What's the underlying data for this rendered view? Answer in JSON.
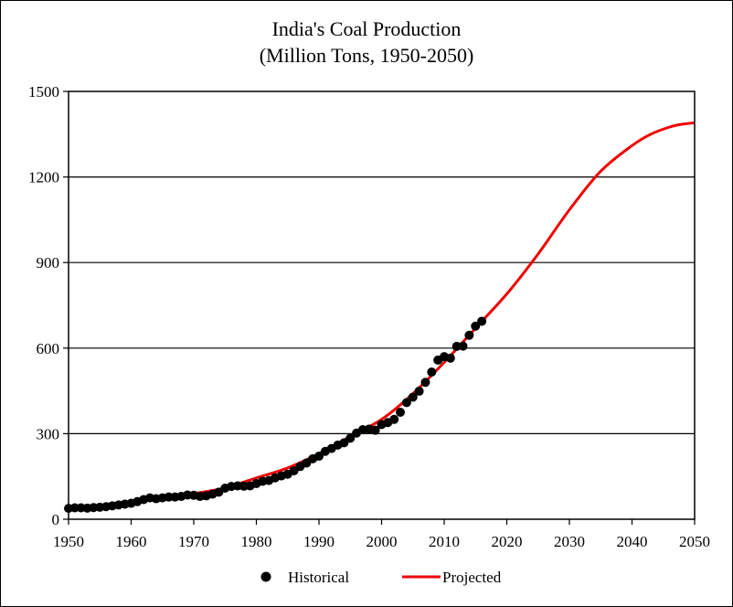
{
  "chart_data": {
    "type": "line",
    "title": "India's Coal Production",
    "subtitle": "(Million Tons, 1950-2050)",
    "xlabel": "",
    "ylabel": "",
    "xlim": [
      1950,
      2050
    ],
    "ylim": [
      0,
      1500
    ],
    "x_ticks": [
      1950,
      1960,
      1970,
      1980,
      1990,
      2000,
      2010,
      2020,
      2030,
      2040,
      2050
    ],
    "y_ticks": [
      0,
      300,
      600,
      900,
      1200,
      1500
    ],
    "x_tick_labels": [
      "1950",
      "1960",
      "1970",
      "1980",
      "1990",
      "2000",
      "2010",
      "2020",
      "2030",
      "2040",
      "2050"
    ],
    "y_tick_labels": [
      "0",
      "300",
      "600",
      "900",
      "1200",
      "1500"
    ],
    "grid": "horizontal",
    "legend_position": "bottom",
    "series": [
      {
        "name": "Historical",
        "kind": "scatter",
        "color": "#000000",
        "x": [
          1950,
          1951,
          1952,
          1953,
          1954,
          1955,
          1956,
          1957,
          1958,
          1959,
          1960,
          1961,
          1962,
          1963,
          1964,
          1965,
          1966,
          1967,
          1968,
          1969,
          1970,
          1971,
          1972,
          1973,
          1974,
          1975,
          1976,
          1977,
          1978,
          1979,
          1980,
          1981,
          1982,
          1983,
          1984,
          1985,
          1986,
          1987,
          1988,
          1989,
          1990,
          1991,
          1992,
          1993,
          1994,
          1995,
          1996,
          1997,
          1998,
          1999,
          2000,
          2001,
          2002,
          2003,
          2004,
          2005,
          2006,
          2007,
          2008,
          2009,
          2010,
          2011,
          2012,
          2013,
          2014,
          2015,
          2016
        ],
        "y": [
          38,
          40,
          40,
          39,
          41,
          42,
          44,
          47,
          50,
          53,
          56,
          62,
          69,
          75,
          72,
          75,
          78,
          78,
          80,
          85,
          84,
          80,
          82,
          88,
          95,
          109,
          115,
          117,
          116,
          117,
          125,
          133,
          136,
          145,
          152,
          158,
          170,
          185,
          197,
          212,
          221,
          238,
          248,
          260,
          268,
          284,
          302,
          314,
          316,
          312,
          332,
          339,
          350,
          375,
          409,
          428,
          449,
          480,
          516,
          558,
          570,
          565,
          606,
          607,
          645,
          677,
          694
        ]
      },
      {
        "name": "Projected",
        "kind": "line",
        "color": "#ee0000",
        "x": [
          1950,
          1955,
          1960,
          1965,
          1970,
          1975,
          1980,
          1985,
          1990,
          1995,
          2000,
          2005,
          2010,
          2015,
          2020,
          2025,
          2030,
          2035,
          2040,
          2043,
          2046,
          2048,
          2050
        ],
        "y": [
          40,
          46,
          56,
          75,
          90,
          110,
          145,
          180,
          230,
          290,
          350,
          440,
          550,
          670,
          790,
          930,
          1085,
          1220,
          1310,
          1350,
          1375,
          1385,
          1390
        ]
      }
    ]
  }
}
